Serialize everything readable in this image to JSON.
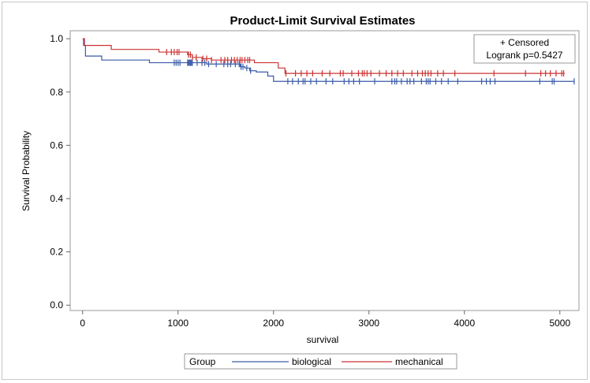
{
  "chart_data": {
    "type": "line",
    "step": true,
    "title": "Product-Limit Survival Estimates",
    "xlabel": "survival",
    "ylabel": "Survival Probability",
    "xlim": [
      -130,
      5200
    ],
    "ylim": [
      -0.02,
      1.03
    ],
    "xticks": [
      0,
      1000,
      2000,
      3000,
      4000,
      5000
    ],
    "yticks": [
      0.0,
      0.2,
      0.4,
      0.6,
      0.8,
      1.0
    ],
    "ytick_labels": [
      "0.0",
      "0.2",
      "0.4",
      "0.6",
      "0.8",
      "1.0"
    ],
    "inset": {
      "line1": "+ Censored",
      "line2": "Logrank p=0.5427"
    },
    "legend": {
      "title": "Group",
      "position": "bottom"
    },
    "series": [
      {
        "name": "biological",
        "color": "#3a5ba8",
        "x": [
          0,
          10,
          30,
          200,
          700,
          1300,
          1650,
          1700,
          1750,
          1820,
          1940,
          2000,
          5150
        ],
        "y": [
          1.0,
          0.975,
          0.935,
          0.92,
          0.91,
          0.905,
          0.895,
          0.89,
          0.88,
          0.875,
          0.86,
          0.84,
          0.84
        ],
        "censored_x": [
          960,
          980,
          1000,
          1020,
          1100,
          1110,
          1120,
          1130,
          1140,
          1150,
          1200,
          1250,
          1280,
          1320,
          1400,
          1480,
          1520,
          1550,
          1600,
          1640,
          1660,
          1680,
          1720,
          1760,
          2150,
          2200,
          2260,
          2310,
          2330,
          2390,
          2450,
          2550,
          2620,
          2740,
          2790,
          2840,
          2900,
          3060,
          3240,
          3270,
          3290,
          3340,
          3400,
          3430,
          3470,
          3550,
          3600,
          3620,
          3640,
          3700,
          3760,
          3830,
          3930,
          4180,
          4230,
          4270,
          4320,
          4790,
          4920,
          4940,
          5150
        ]
      },
      {
        "name": "mechanical",
        "color": "#cc3333",
        "x": [
          0,
          20,
          300,
          800,
          1100,
          1150,
          1250,
          1350,
          1800,
          2050,
          2120,
          5050
        ],
        "y": [
          1.0,
          0.975,
          0.96,
          0.95,
          0.94,
          0.93,
          0.925,
          0.92,
          0.91,
          0.89,
          0.87,
          0.87
        ],
        "censored_x": [
          880,
          930,
          960,
          990,
          1010,
          1110,
          1130,
          1150,
          1190,
          1260,
          1300,
          1350,
          1450,
          1490,
          1520,
          1560,
          1590,
          1620,
          1650,
          1670,
          1700,
          1730,
          1750,
          2130,
          2230,
          2290,
          2350,
          2410,
          2510,
          2590,
          2700,
          2730,
          2820,
          2890,
          2930,
          2950,
          2980,
          3020,
          3110,
          3180,
          3240,
          3300,
          3360,
          3450,
          3510,
          3560,
          3590,
          3620,
          3650,
          3720,
          3780,
          3900,
          4310,
          4640,
          4800,
          4850,
          4900,
          4960,
          5020,
          5040
        ]
      }
    ]
  }
}
